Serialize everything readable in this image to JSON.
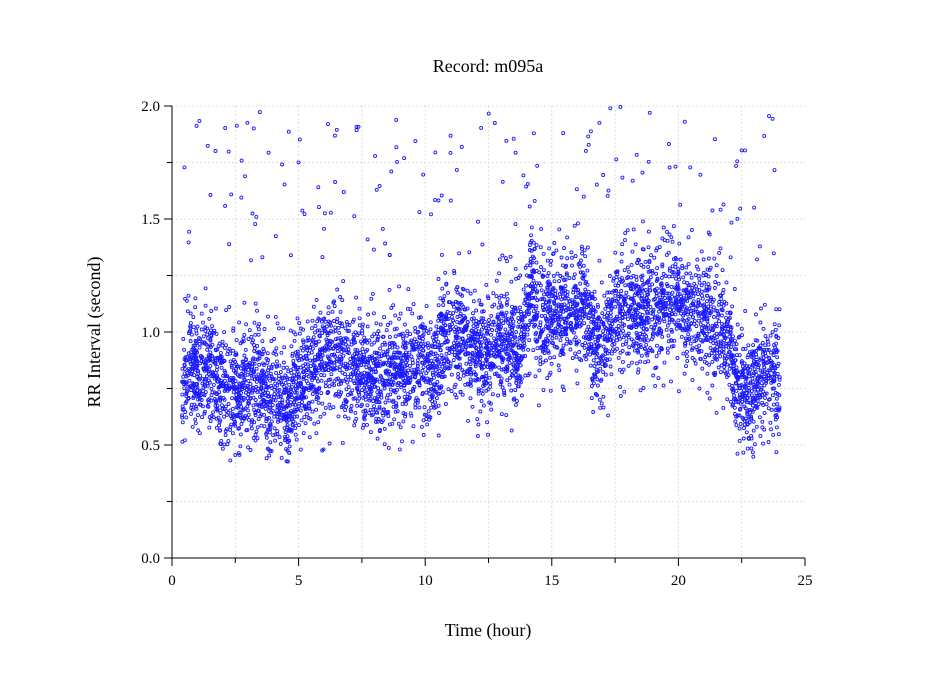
{
  "chart_data": {
    "type": "scatter",
    "title": "Record:  m095a",
    "xlabel": "Time (hour)",
    "ylabel": "RR Interval (second)",
    "xlim": [
      0,
      25
    ],
    "ylim": [
      0.0,
      2.0
    ],
    "x_ticks": [
      "0",
      "5",
      "10",
      "15",
      "20",
      "25"
    ],
    "y_ticks": [
      "0.0",
      "0.5",
      "1.0",
      "1.5",
      "2.0"
    ],
    "grid": true,
    "marker": "open-circle",
    "color": "#1a1aff",
    "series": [
      {
        "x": [
          0.4,
          0.7,
          1.0,
          1.3,
          1.6,
          1.9,
          2.2,
          2.5,
          2.8,
          3.1,
          3.4,
          3.7,
          4.0,
          4.3,
          4.6,
          4.9,
          5.2,
          5.5,
          5.8,
          6.1,
          6.4,
          6.7,
          7.0,
          7.3,
          7.6,
          7.9,
          8.2,
          8.5,
          8.8,
          9.1,
          9.4,
          9.7,
          10.0,
          10.3,
          10.6,
          10.9,
          11.2,
          11.5,
          11.8,
          12.1,
          12.4,
          12.7,
          13.0,
          13.3,
          13.6,
          13.9,
          14.2,
          14.5,
          14.8,
          15.1,
          15.4,
          15.7,
          16.0,
          16.3,
          16.6,
          16.9,
          17.2,
          17.5,
          17.8,
          18.1,
          18.4,
          18.7,
          19.0,
          19.3,
          19.6,
          19.9,
          20.2,
          20.5,
          20.8,
          21.1,
          21.4,
          21.7,
          22.0,
          22.3,
          22.6,
          22.9,
          23.2,
          23.5,
          23.8,
          24.0
        ],
        "y": [
          0.78,
          0.83,
          0.85,
          0.86,
          0.82,
          0.76,
          0.74,
          0.75,
          0.76,
          0.77,
          0.75,
          0.72,
          0.7,
          0.68,
          0.64,
          0.78,
          0.8,
          0.82,
          0.84,
          0.86,
          0.9,
          0.88,
          0.84,
          0.85,
          0.82,
          0.8,
          0.78,
          0.83,
          0.86,
          0.84,
          0.85,
          0.86,
          0.88,
          0.82,
          0.92,
          0.96,
          0.98,
          1.0,
          0.94,
          0.9,
          0.88,
          0.92,
          0.98,
          0.95,
          0.9,
          1.0,
          1.25,
          1.02,
          1.05,
          1.08,
          1.12,
          1.1,
          1.12,
          1.08,
          1.0,
          0.94,
          0.96,
          1.05,
          1.08,
          1.1,
          1.12,
          1.1,
          1.08,
          1.1,
          1.15,
          1.12,
          1.1,
          1.08,
          1.05,
          1.1,
          1.02,
          1.0,
          0.95,
          0.8,
          0.76,
          0.72,
          0.8,
          0.82,
          0.82,
          0.8
        ]
      }
    ]
  }
}
